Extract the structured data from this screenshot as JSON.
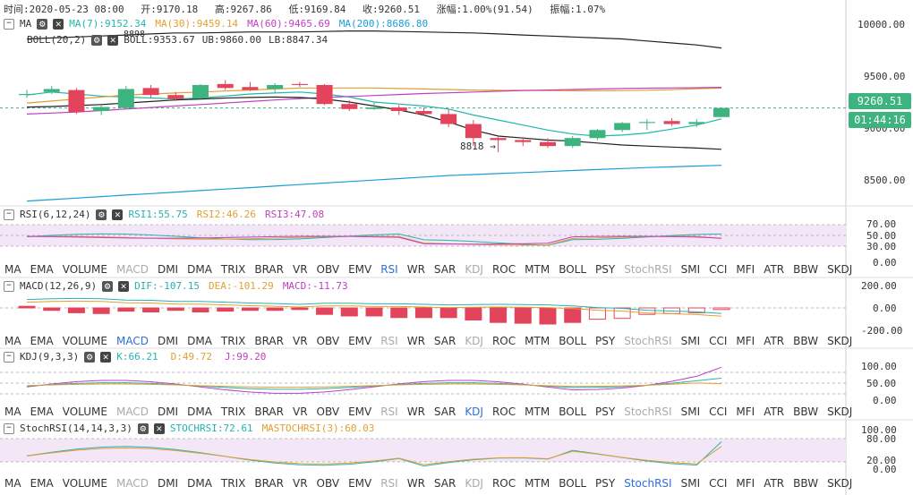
{
  "header": {
    "time": "时间:2020-05-23 08:00",
    "open": "开:9170.18",
    "high": "高:9267.86",
    "low": "低:9169.84",
    "close": "收:9260.51",
    "change": "涨幅:1.00%(91.54)",
    "amplitude": "振幅:1.07%"
  },
  "ma_legend": {
    "name": "MA",
    "ma7": "MA(7):9152.34",
    "ma30": "MA(30):9459.14",
    "ma60": "MA(60):9465.69",
    "ma200": "MA(200):8686.80"
  },
  "boll_legend": {
    "name": "BOLL(20,2)",
    "boll": "BOLL:9353.67",
    "ub": "UB:9860.00",
    "lb": "LB:8847.34",
    "marker_peek": "8898"
  },
  "price_axis": {
    "ticks": [
      "10000.00",
      "9500.00",
      "9000.00",
      "8500.00"
    ],
    "current_price": "9260.51",
    "countdown": "01:44:16"
  },
  "low_annotation": "8818 →",
  "rsi_legend": {
    "name": "RSI(6,12,24)",
    "rsi1": "RSI1:55.75",
    "rsi2": "RSI2:46.26",
    "rsi3": "RSI3:47.08",
    "ticks": [
      "70.00",
      "50.00",
      "30.00",
      "0.00"
    ]
  },
  "macd_legend": {
    "name": "MACD(12,26,9)",
    "dif": "DIF:-107.15",
    "dea": "DEA:-101.29",
    "macd": "MACD:-11.73",
    "ticks": [
      "200.00",
      "0.00",
      "-200.00"
    ]
  },
  "kdj_legend": {
    "name": "KDJ(9,3,3)",
    "k": "K:66.21",
    "d": "D:49.72",
    "j": "J:99.20",
    "ticks": [
      "100.00",
      "50.00",
      "0.00"
    ]
  },
  "stochrsi_legend": {
    "name": "StochRSI(14,14,3,3)",
    "stoch": "STOCHRSI:72.61",
    "mastoch": "MASTOCHRSI(3):60.03",
    "ticks": [
      "100.00",
      "80.00",
      "20.00",
      "0.00"
    ]
  },
  "tabs": [
    "MA",
    "EMA",
    "VOLUME",
    "MACD",
    "DMI",
    "DMA",
    "TRIX",
    "BRAR",
    "VR",
    "OBV",
    "EMV",
    "RSI",
    "WR",
    "SAR",
    "KDJ",
    "ROC",
    "MTM",
    "BOLL",
    "PSY",
    "StochRSI",
    "SMI",
    "CCI",
    "MFI",
    "ATR",
    "BBW",
    "SKDJ"
  ],
  "colors": {
    "up": "#3db37f",
    "down": "#e2455b",
    "ma7": "#1fb8a8",
    "ma30": "#e0a030",
    "ma60": "#c040c0",
    "ma200": "#1a9ed8",
    "boll_band": "#222222",
    "rsi1": "#2ab0b0",
    "rsi2": "#e0a030",
    "rsi3": "#c040c0",
    "k": "#2ab0b0",
    "d": "#e0a030",
    "j": "#c040c0",
    "tab_active": "#2f6fd6"
  },
  "chart_data": [
    {
      "type": "candlestick",
      "title": "",
      "ylim": [
        8300,
        10250
      ],
      "candles": [
        {
          "o": 9390,
          "h": 9440,
          "l": 9360,
          "c": 9400
        },
        {
          "o": 9420,
          "h": 9480,
          "l": 9400,
          "c": 9450
        },
        {
          "o": 9440,
          "h": 9460,
          "l": 9200,
          "c": 9220
        },
        {
          "o": 9230,
          "h": 9290,
          "l": 9190,
          "c": 9270
        },
        {
          "o": 9260,
          "h": 9480,
          "l": 9250,
          "c": 9450
        },
        {
          "o": 9460,
          "h": 9490,
          "l": 9360,
          "c": 9390
        },
        {
          "o": 9390,
          "h": 9420,
          "l": 9330,
          "c": 9350
        },
        {
          "o": 9360,
          "h": 9500,
          "l": 9340,
          "c": 9490
        },
        {
          "o": 9500,
          "h": 9540,
          "l": 9440,
          "c": 9460
        },
        {
          "o": 9470,
          "h": 9520,
          "l": 9430,
          "c": 9440
        },
        {
          "o": 9450,
          "h": 9510,
          "l": 9410,
          "c": 9490
        },
        {
          "o": 9500,
          "h": 9520,
          "l": 9470,
          "c": 9490
        },
        {
          "o": 9490,
          "h": 9500,
          "l": 9290,
          "c": 9300
        },
        {
          "o": 9300,
          "h": 9340,
          "l": 9230,
          "c": 9250
        },
        {
          "o": 9250,
          "h": 9320,
          "l": 9240,
          "c": 9265
        },
        {
          "o": 9265,
          "h": 9290,
          "l": 9190,
          "c": 9230
        },
        {
          "o": 9230,
          "h": 9270,
          "l": 9180,
          "c": 9200
        },
        {
          "o": 9200,
          "h": 9250,
          "l": 9070,
          "c": 9100
        },
        {
          "o": 9100,
          "h": 9140,
          "l": 8880,
          "c": 8960
        },
        {
          "o": 8960,
          "h": 8980,
          "l": 8818,
          "c": 8940
        },
        {
          "o": 8940,
          "h": 8970,
          "l": 8880,
          "c": 8920
        },
        {
          "o": 8920,
          "h": 8960,
          "l": 8860,
          "c": 8880
        },
        {
          "o": 8880,
          "h": 8980,
          "l": 8860,
          "c": 8960
        },
        {
          "o": 8960,
          "h": 9050,
          "l": 8940,
          "c": 9040
        },
        {
          "o": 9040,
          "h": 9120,
          "l": 9020,
          "c": 9110
        },
        {
          "o": 9110,
          "h": 9150,
          "l": 9040,
          "c": 9120
        },
        {
          "o": 9130,
          "h": 9160,
          "l": 9080,
          "c": 9100
        },
        {
          "o": 9100,
          "h": 9150,
          "l": 9070,
          "c": 9120
        },
        {
          "o": 9170,
          "h": 9268,
          "l": 9170,
          "c": 9261
        }
      ],
      "series": [
        {
          "name": "MA(7)",
          "values": [
            9390,
            9420,
            9400,
            9380,
            9370,
            9360,
            9350,
            9360,
            9380,
            9400,
            9410,
            9420,
            9400,
            9370,
            9320,
            9300,
            9280,
            9250,
            9190,
            9140,
            9090,
            9040,
            9000,
            8980,
            8990,
            9010,
            9050,
            9090,
            9152
          ]
        },
        {
          "name": "MA(30)",
          "values": [
            9310,
            9330,
            9350,
            9370,
            9390,
            9400,
            9410,
            9420,
            9430,
            9440,
            9450,
            9460,
            9460,
            9460,
            9460,
            9455,
            9450,
            9445,
            9440,
            9438,
            9436,
            9434,
            9432,
            9432,
            9434,
            9438,
            9444,
            9452,
            9459
          ]
        },
        {
          "name": "MA(60)",
          "values": [
            9200,
            9210,
            9220,
            9235,
            9250,
            9265,
            9280,
            9295,
            9310,
            9325,
            9340,
            9355,
            9365,
            9375,
            9385,
            9395,
            9405,
            9412,
            9420,
            9428,
            9435,
            9440,
            9445,
            9450,
            9455,
            9458,
            9461,
            9463,
            9466
          ]
        },
        {
          "name": "MA(200)",
          "values": [
            8330,
            8345,
            8360,
            8375,
            8390,
            8405,
            8420,
            8435,
            8450,
            8465,
            8480,
            8495,
            8510,
            8525,
            8540,
            8555,
            8570,
            8585,
            8595,
            8605,
            8615,
            8625,
            8635,
            8645,
            8655,
            8665,
            8672,
            8680,
            8687
          ]
        },
        {
          "name": "UB",
          "values": [
            9950,
            9960,
            9970,
            9980,
            9990,
            10000,
            10010,
            10010,
            10015,
            10020,
            10020,
            10020,
            10025,
            10030,
            10030,
            10025,
            10020,
            10015,
            10010,
            10000,
            9990,
            9980,
            9970,
            9960,
            9950,
            9930,
            9910,
            9890,
            9860
          ]
        },
        {
          "name": "LB",
          "values": [
            9270,
            9275,
            9285,
            9295,
            9310,
            9325,
            9340,
            9350,
            9360,
            9365,
            9370,
            9365,
            9350,
            9320,
            9280,
            9240,
            9190,
            9120,
            9040,
            8980,
            8960,
            8940,
            8930,
            8910,
            8890,
            8880,
            8870,
            8860,
            8847
          ]
        }
      ]
    }
  ]
}
